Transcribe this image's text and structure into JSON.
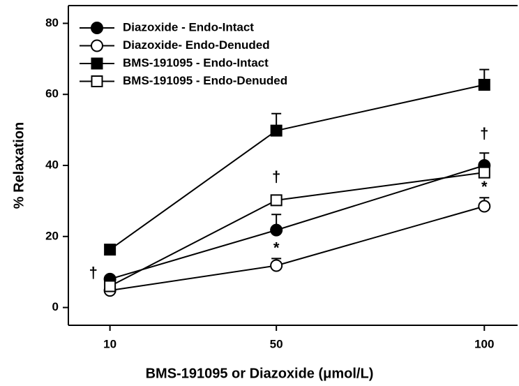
{
  "chart_data": {
    "type": "line",
    "x_label": "BMS-191095 or Diazoxide (μmol/L)",
    "y_label": "% Relaxation",
    "x": [
      10,
      50,
      100
    ],
    "xlim": [
      0,
      108
    ],
    "xticks": [
      10,
      50,
      100
    ],
    "ylim": [
      -5,
      85
    ],
    "yticks": [
      0,
      20,
      40,
      60,
      80
    ],
    "legend": "upper left",
    "series": [
      {
        "name": "Diazoxide - Endo-Intact",
        "color": "#000000",
        "marker": "circle",
        "filled": true,
        "values": [
          8,
          21.8,
          40
        ],
        "errors": [
          null,
          4.4,
          3.5
        ]
      },
      {
        "name": "Diazoxide- Endo-Denuded",
        "color": "#000000",
        "marker": "circle",
        "filled": false,
        "values": [
          4.8,
          11.8,
          28.5
        ],
        "errors": [
          null,
          2,
          2.4
        ]
      },
      {
        "name": "BMS-191095 - Endo-Intact",
        "color": "#000000",
        "marker": "square",
        "filled": true,
        "values": [
          16.3,
          49.8,
          62.7
        ],
        "errors": [
          null,
          4.8,
          4.3
        ]
      },
      {
        "name": "BMS-191095 - Endo-Denuded",
        "color": "#000000",
        "marker": "square",
        "filled": false,
        "values": [
          6,
          30.2,
          38
        ],
        "errors": [
          null,
          null,
          null
        ]
      }
    ],
    "annotations": [
      {
        "text": "†",
        "x": 6,
        "y": 9.5
      },
      {
        "text": "†",
        "x": 50,
        "y": 36.5
      },
      {
        "text": "†",
        "x": 100,
        "y": 48.7
      },
      {
        "text": "*",
        "x": 50,
        "y": 16.5
      },
      {
        "text": "*",
        "x": 100,
        "y": 33.7
      }
    ]
  }
}
